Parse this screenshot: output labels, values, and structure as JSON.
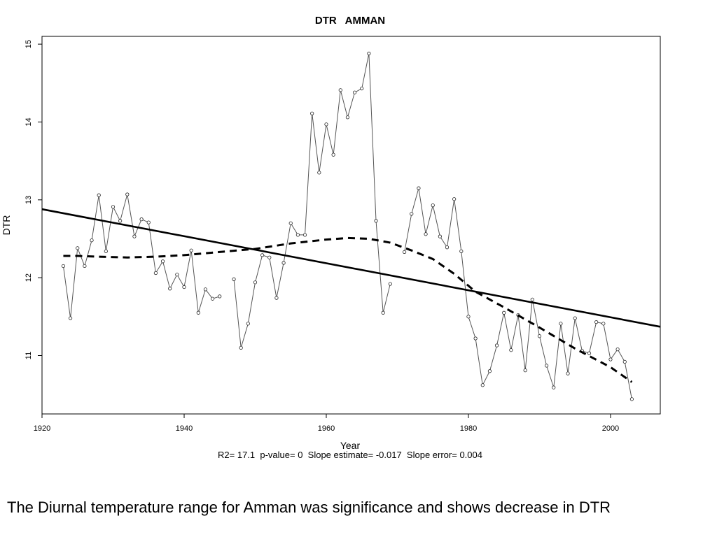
{
  "chart_data": {
    "type": "line",
    "title": "DTR   AMMAN",
    "xlabel": "Year",
    "ylabel": "DTR",
    "stats_line": "R2= 17.1  p-value= 0  Slope estimate= -0.017  Slope error= 0.004",
    "xlim": [
      1920,
      2007
    ],
    "ylim": [
      10.25,
      15.1
    ],
    "x_ticks": [
      1920,
      1940,
      1960,
      1980,
      2000
    ],
    "y_ticks": [
      11,
      12,
      13,
      14,
      15
    ],
    "grid": false,
    "series": [
      {
        "style": "observed",
        "points": [
          [
            1923,
            12.15
          ],
          [
            1924,
            11.48
          ],
          [
            1925,
            12.38
          ],
          [
            1926,
            12.15
          ],
          [
            1927,
            12.48
          ],
          [
            1928,
            13.06
          ],
          [
            1929,
            12.34
          ],
          [
            1930,
            12.91
          ],
          [
            1931,
            12.73
          ],
          [
            1932,
            13.07
          ],
          [
            1933,
            12.53
          ],
          [
            1934,
            12.75
          ],
          [
            1935,
            12.71
          ],
          [
            1936,
            12.06
          ],
          [
            1937,
            12.21
          ],
          [
            1938,
            11.86
          ],
          [
            1939,
            12.04
          ],
          [
            1940,
            11.88
          ],
          [
            1941,
            12.35
          ],
          [
            1942,
            11.55
          ],
          [
            1943,
            11.85
          ],
          [
            1944,
            11.73
          ],
          [
            1945,
            11.76
          ],
          [
            1947,
            11.98
          ],
          [
            1948,
            11.1
          ],
          [
            1949,
            11.41
          ],
          [
            1950,
            11.94
          ],
          [
            1951,
            12.29
          ],
          [
            1952,
            12.26
          ],
          [
            1953,
            11.74
          ],
          [
            1954,
            12.19
          ],
          [
            1955,
            12.7
          ],
          [
            1956,
            12.55
          ],
          [
            1957,
            12.55
          ],
          [
            1958,
            14.11
          ],
          [
            1959,
            13.35
          ],
          [
            1960,
            13.97
          ],
          [
            1961,
            13.58
          ],
          [
            1962,
            14.41
          ],
          [
            1963,
            14.06
          ],
          [
            1964,
            14.38
          ],
          [
            1965,
            14.43
          ],
          [
            1966,
            14.88
          ],
          [
            1967,
            12.73
          ],
          [
            1968,
            11.55
          ],
          [
            1969,
            11.92
          ],
          [
            1971,
            12.33
          ],
          [
            1972,
            12.82
          ],
          [
            1973,
            13.15
          ],
          [
            1974,
            12.56
          ],
          [
            1975,
            12.93
          ],
          [
            1976,
            12.53
          ],
          [
            1977,
            12.39
          ],
          [
            1978,
            13.01
          ],
          [
            1979,
            12.34
          ],
          [
            1980,
            11.5
          ],
          [
            1981,
            11.22
          ],
          [
            1982,
            10.62
          ],
          [
            1983,
            10.8
          ],
          [
            1984,
            11.13
          ],
          [
            1985,
            11.55
          ],
          [
            1986,
            11.07
          ],
          [
            1987,
            11.52
          ],
          [
            1988,
            10.81
          ],
          [
            1989,
            11.72
          ],
          [
            1990,
            11.25
          ],
          [
            1991,
            10.87
          ],
          [
            1992,
            10.59
          ],
          [
            1993,
            11.41
          ],
          [
            1994,
            10.77
          ],
          [
            1995,
            11.48
          ],
          [
            1996,
            11.06
          ],
          [
            1997,
            11.03
          ],
          [
            1998,
            11.43
          ],
          [
            1999,
            11.41
          ],
          [
            2000,
            10.95
          ],
          [
            2001,
            11.08
          ],
          [
            2002,
            10.92
          ],
          [
            2003,
            10.44
          ]
        ]
      },
      {
        "style": "linear-trend",
        "points": [
          [
            1920,
            12.88
          ],
          [
            2007,
            11.37
          ]
        ]
      },
      {
        "style": "smoothed-dashed",
        "points": [
          [
            1923,
            12.28
          ],
          [
            1925,
            12.28
          ],
          [
            1928,
            12.27
          ],
          [
            1932,
            12.26
          ],
          [
            1936,
            12.27
          ],
          [
            1940,
            12.29
          ],
          [
            1945,
            12.33
          ],
          [
            1950,
            12.37
          ],
          [
            1955,
            12.44
          ],
          [
            1960,
            12.49
          ],
          [
            1963,
            12.51
          ],
          [
            1966,
            12.5
          ],
          [
            1969,
            12.45
          ],
          [
            1972,
            12.35
          ],
          [
            1975,
            12.24
          ],
          [
            1978,
            12.05
          ],
          [
            1981,
            11.82
          ],
          [
            1985,
            11.62
          ],
          [
            1990,
            11.36
          ],
          [
            1995,
            11.09
          ],
          [
            2000,
            10.85
          ],
          [
            2003,
            10.66
          ]
        ]
      }
    ]
  },
  "caption": "The Diurnal temperature range for Amman was significance and shows decrease in DTR"
}
